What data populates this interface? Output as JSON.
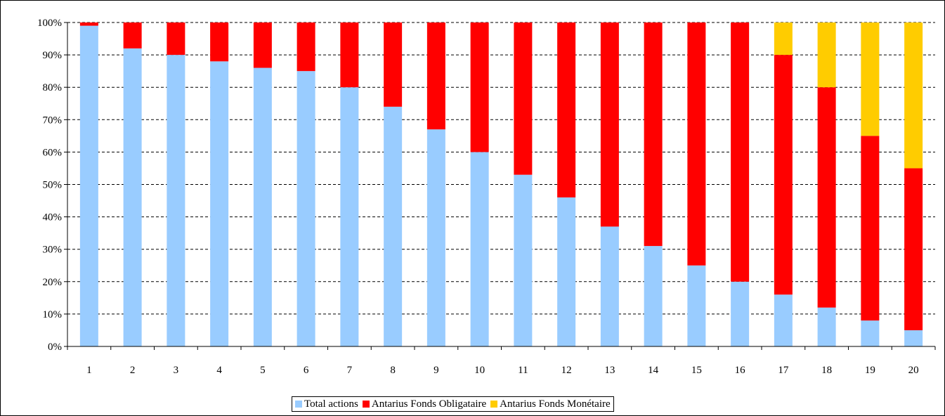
{
  "chart_data": {
    "type": "bar",
    "stacked": true,
    "percent_stacked": true,
    "categories": [
      "1",
      "2",
      "3",
      "4",
      "5",
      "6",
      "7",
      "8",
      "9",
      "10",
      "11",
      "12",
      "13",
      "14",
      "15",
      "16",
      "17",
      "18",
      "19",
      "20"
    ],
    "series": [
      {
        "name": "Total actions",
        "color": "#99ccff",
        "values": [
          99,
          92,
          90,
          88,
          86,
          85,
          80,
          74,
          67,
          60,
          53,
          46,
          37,
          31,
          25,
          20,
          16,
          12,
          8,
          5
        ]
      },
      {
        "name": "Antarius Fonds Obligataire",
        "color": "#ff0000",
        "values": [
          1,
          8,
          10,
          12,
          14,
          15,
          20,
          26,
          33,
          40,
          47,
          54,
          63,
          69,
          75,
          80,
          74,
          68,
          57,
          50
        ]
      },
      {
        "name": "Antarius Fonds Monétaire",
        "color": "#ffcc00",
        "values": [
          0,
          0,
          0,
          0,
          0,
          0,
          0,
          0,
          0,
          0,
          0,
          0,
          0,
          0,
          0,
          0,
          10,
          20,
          35,
          45
        ]
      }
    ],
    "ylim": [
      0,
      100
    ],
    "yticks": [
      "0%",
      "10%",
      "20%",
      "30%",
      "40%",
      "50%",
      "60%",
      "70%",
      "80%",
      "90%",
      "100%"
    ],
    "grid": "horizontal dashed",
    "legend_position": "bottom"
  }
}
